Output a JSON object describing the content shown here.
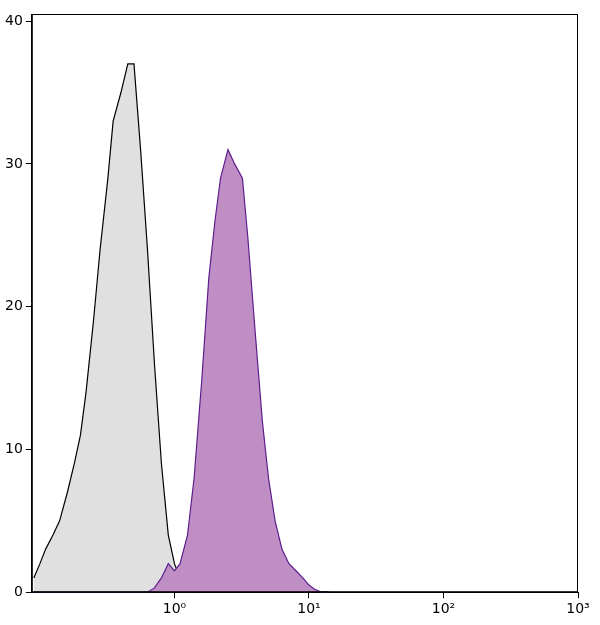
{
  "chart_data": {
    "type": "line",
    "x": [
      0.09,
      0.1,
      0.11,
      0.125,
      0.14,
      0.16,
      0.18,
      0.2,
      0.22,
      0.25,
      0.28,
      0.32,
      0.35,
      0.4,
      0.45,
      0.5,
      0.56,
      0.63,
      0.71,
      0.8,
      0.9,
      1.0,
      1.1,
      1.25,
      1.4,
      1.6,
      1.8,
      2.0,
      2.2,
      2.5,
      2.8,
      3.2,
      3.5,
      4.0,
      4.5,
      5.0,
      5.6,
      6.3,
      7.1,
      8.0,
      9.0,
      10,
      11,
      12.5,
      14
    ],
    "series": [
      {
        "color": "#e0e0e0",
        "values": [
          1,
          2,
          3,
          4,
          5,
          7,
          9,
          11,
          14,
          19,
          24,
          29,
          33,
          35,
          37,
          37,
          31,
          24,
          16,
          9,
          4,
          2,
          1,
          0.5,
          0,
          0,
          0,
          0,
          0,
          0,
          0,
          0,
          0,
          0,
          0,
          0,
          0,
          0,
          0,
          0,
          0,
          0,
          0,
          0,
          0
        ]
      },
      {
        "color": "#bf8ec4",
        "values": [
          0,
          0,
          0,
          0,
          0,
          0,
          0,
          0,
          0,
          0,
          0,
          0,
          0,
          0,
          0,
          0,
          0,
          0,
          0.3,
          1,
          2,
          1.5,
          2,
          4,
          8,
          15,
          22,
          26,
          29,
          31,
          30,
          29,
          25,
          18,
          12,
          8,
          5,
          3,
          2,
          1.5,
          1,
          0.5,
          0.2,
          0,
          0
        ]
      }
    ],
    "log": "x",
    "xlim": [
      0.087,
      1000
    ],
    "xticks": [
      {
        "value": 1,
        "label": "10⁰"
      },
      {
        "value": 10,
        "label": "10¹"
      },
      {
        "value": 100,
        "label": "10²"
      },
      {
        "value": 1000,
        "label": "10³"
      }
    ],
    "ylim": [
      0,
      40.5
    ],
    "yticks": [
      0,
      10,
      20,
      30,
      40
    ],
    "grid": false
  }
}
